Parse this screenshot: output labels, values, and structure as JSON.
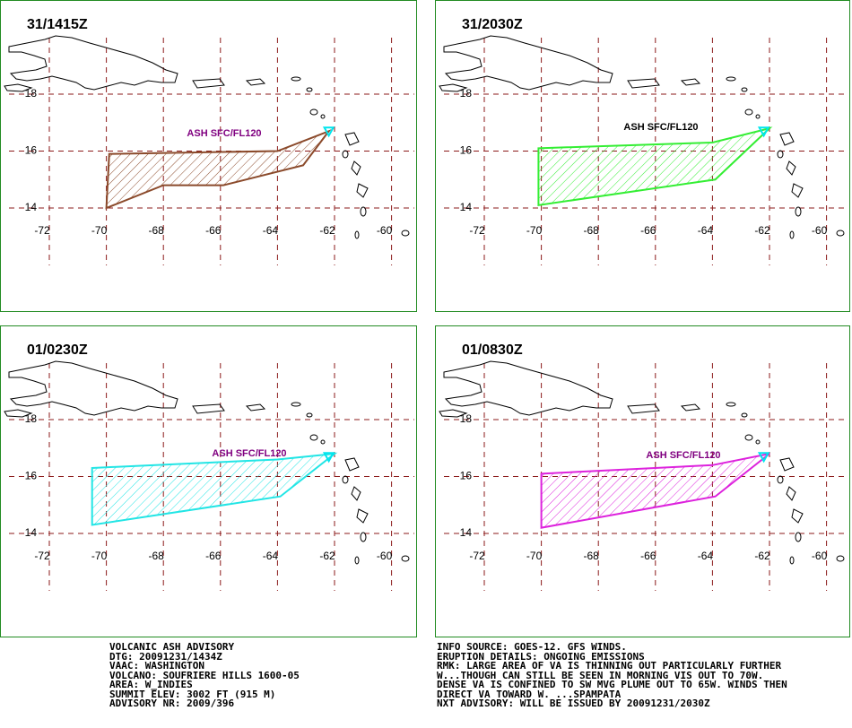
{
  "panels": [
    {
      "title": "31/1415Z",
      "label": "ASH SFC/FL120",
      "color": "#8b4a2b",
      "polygon": [
        [
          -69.9,
          15.9
        ],
        [
          -64,
          16
        ],
        [
          -62.2,
          16.7
        ],
        [
          -63.1,
          15.5
        ],
        [
          -65.9,
          14.8
        ],
        [
          -68,
          14.8
        ],
        [
          -70,
          14
        ]
      ]
    },
    {
      "title": "31/2030Z",
      "label": "ASH SFC/FL120",
      "color": "#33ee33",
      "polygon": [
        [
          -70.1,
          16.1
        ],
        [
          -64,
          16.3
        ],
        [
          -62,
          16.8
        ],
        [
          -63.9,
          15
        ],
        [
          -70.1,
          14.1
        ]
      ]
    },
    {
      "title": "01/0230Z",
      "label": "ASH SFC/FL120",
      "color": "#22e5e5",
      "polygon": [
        [
          -70.5,
          16.3
        ],
        [
          -64,
          16.6
        ],
        [
          -62,
          16.8
        ],
        [
          -63.9,
          15.3
        ],
        [
          -70.5,
          14.3
        ]
      ]
    },
    {
      "title": "01/0830Z",
      "label": "ASH SFC/FL120",
      "color": "#dd22dd",
      "polygon": [
        [
          -70,
          16.1
        ],
        [
          -64,
          16.4
        ],
        [
          -62,
          16.8
        ],
        [
          -63.9,
          15.3
        ],
        [
          -70,
          14.2
        ]
      ]
    }
  ],
  "lon_ticks": [
    -72,
    -70,
    -68,
    -66,
    -64,
    -62,
    -60
  ],
  "lat_ticks": [
    18,
    16,
    14
  ],
  "advisory_left": [
    "VOLCANIC ASH ADVISORY",
    "DTG: 20091231/1434Z",
    "VAAC: WASHINGTON",
    "VOLCANO: SOUFRIERE HILLS 1600-05",
    "AREA: W_INDIES",
    "SUMMIT ELEV: 3002 FT (915 M)",
    "ADVISORY NR: 2009/396"
  ],
  "advisory_right": [
    "INFO SOURCE: GOES-12. GFS WINDS.",
    "ERUPTION DETAILS: ONGOING EMISSIONS",
    "RMK: LARGE AREA OF VA IS THINNING OUT PARTICULARLY FURTHER",
    "W...THOUGH CAN STILL BE SEEN IN MORNING VIS OUT TO 70W.",
    "DENSE VA IS CONFINED TO SW MVG PLUME OUT TO 65W. WINDS THEN",
    "DIRECT VA TOWARD W. ...SPAMPATA",
    "NXT ADVISORY: WILL BE ISSUED BY 20091231/2030Z"
  ]
}
